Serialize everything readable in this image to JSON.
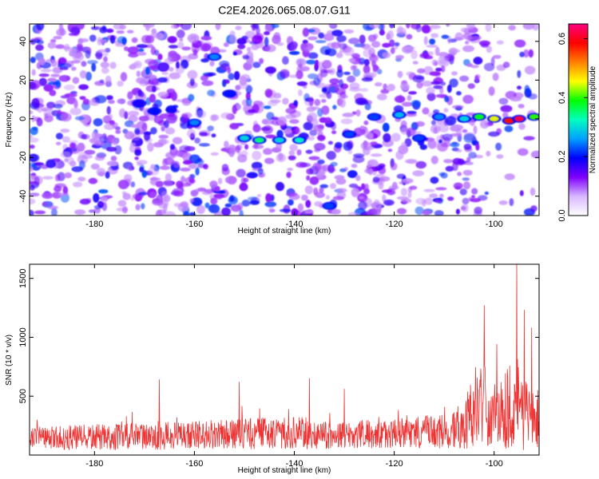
{
  "title": "C2E4.2026.065.08.07.G11",
  "chart_data": [
    {
      "type": "heatmap",
      "title": "C2E4.2026.065.08.07.G11",
      "xlabel": "Height of straight line (km)",
      "ylabel": "Frequency (Hz)",
      "xlim": [
        -193,
        -91
      ],
      "ylim": [
        -50,
        49
      ],
      "xticks": [
        -180,
        -160,
        -140,
        -120,
        -100
      ],
      "yticks": [
        -40,
        -20,
        0,
        20,
        40
      ],
      "xtick_labels": [
        "-180",
        "-160",
        "-140",
        "-120",
        "-100"
      ],
      "ytick_labels": [
        "-40",
        "-20",
        "0",
        "20",
        "40"
      ],
      "colorbar": {
        "label": "Normalized spectral amplitude",
        "range": [
          0.0,
          0.65
        ],
        "ticks": [
          0.0,
          0.2,
          0.4,
          0.6
        ],
        "tick_labels": [
          "0.0",
          "0.2",
          "0.4",
          "0.6"
        ],
        "colors": [
          "#ffffff",
          "#d8b8ff",
          "#8000ff",
          "#0000ff",
          "#00a0ff",
          "#00ffc0",
          "#00ff00",
          "#ffff00",
          "#ff8000",
          "#ff0000",
          "#ff0080"
        ]
      },
      "signal_track": [
        {
          "x": -171,
          "y": 8,
          "a": 0.18
        },
        {
          "x": -168,
          "y": 4,
          "a": 0.2
        },
        {
          "x": -160,
          "y": -2,
          "a": 0.25
        },
        {
          "x": -156,
          "y": 32,
          "a": 0.25
        },
        {
          "x": -153,
          "y": 13,
          "a": 0.2
        },
        {
          "x": -150,
          "y": -10,
          "a": 0.3
        },
        {
          "x": -147,
          "y": -11,
          "a": 0.35
        },
        {
          "x": -143,
          "y": -11,
          "a": 0.3
        },
        {
          "x": -139,
          "y": -11,
          "a": 0.32
        },
        {
          "x": -133,
          "y": -45,
          "a": 0.22
        },
        {
          "x": -129,
          "y": -8,
          "a": 0.22
        },
        {
          "x": -124,
          "y": 1,
          "a": 0.22
        },
        {
          "x": -119,
          "y": 2,
          "a": 0.28
        },
        {
          "x": -115,
          "y": -10,
          "a": 0.22
        },
        {
          "x": -111,
          "y": 1,
          "a": 0.25
        },
        {
          "x": -106,
          "y": 0,
          "a": 0.3
        },
        {
          "x": -103,
          "y": 1,
          "a": 0.38
        },
        {
          "x": -100,
          "y": 0,
          "a": 0.45
        },
        {
          "x": -97,
          "y": -1,
          "a": 0.58
        },
        {
          "x": -95,
          "y": 0,
          "a": 0.62
        },
        {
          "x": -92,
          "y": 1,
          "a": 0.4
        }
      ]
    },
    {
      "type": "line",
      "xlabel": "Height of straight line (km)",
      "ylabel": "SNR (10 * v/v)",
      "xlim": [
        -193,
        -91
      ],
      "ylim": [
        0,
        1620
      ],
      "xticks": [
        -180,
        -160,
        -140,
        -120,
        -100
      ],
      "yticks": [
        500,
        1000,
        1500
      ],
      "xtick_labels": [
        "-180",
        "-160",
        "-140",
        "-120",
        "-100"
      ],
      "ytick_labels": [
        "500",
        "1000",
        "1500"
      ],
      "series": [
        {
          "name": "SNR",
          "color": "#ee3333",
          "envelope": [
            {
              "x": -193,
              "base": 140,
              "spread": 180
            },
            {
              "x": -180,
              "base": 150,
              "spread": 200
            },
            {
              "x": -170,
              "base": 160,
              "spread": 210
            },
            {
              "x": -160,
              "base": 170,
              "spread": 220
            },
            {
              "x": -150,
              "base": 180,
              "spread": 240
            },
            {
              "x": -140,
              "base": 190,
              "spread": 250
            },
            {
              "x": -130,
              "base": 170,
              "spread": 220
            },
            {
              "x": -120,
              "base": 180,
              "spread": 230
            },
            {
              "x": -110,
              "base": 200,
              "spread": 270
            },
            {
              "x": -106,
              "base": 260,
              "spread": 380
            },
            {
              "x": -103,
              "base": 420,
              "spread": 650
            },
            {
              "x": -101,
              "base": 300,
              "spread": 400
            },
            {
              "x": -99,
              "base": 380,
              "spread": 600
            },
            {
              "x": -96,
              "base": 420,
              "spread": 700
            },
            {
              "x": -93,
              "base": 350,
              "spread": 550
            },
            {
              "x": -91,
              "base": 340,
              "spread": 500
            }
          ],
          "peaks": [
            {
              "x": -167,
              "y": 640
            },
            {
              "x": -151,
              "y": 620
            },
            {
              "x": -137,
              "y": 650
            },
            {
              "x": -130,
              "y": 560
            },
            {
              "x": -102,
              "y": 1270
            },
            {
              "x": -99.5,
              "y": 940
            },
            {
              "x": -95.5,
              "y": 1650
            },
            {
              "x": -94,
              "y": 1230
            },
            {
              "x": -92.5,
              "y": 1080
            }
          ]
        }
      ]
    }
  ]
}
